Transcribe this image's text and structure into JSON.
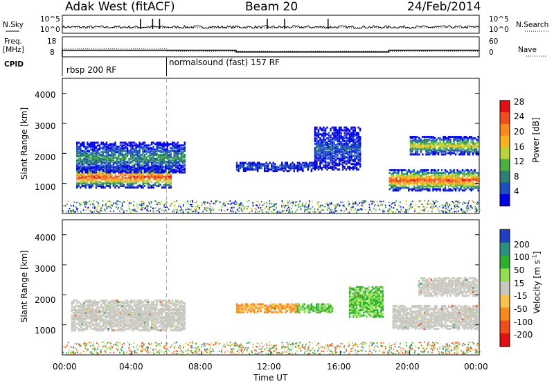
{
  "header": {
    "station": "Adak West (fitACF)",
    "beam": "Beam 20",
    "date": "24/Feb/2014"
  },
  "nsky_panel": {
    "left_label": "N.Sky",
    "right_label": "N.Search",
    "left_ticks": [
      "10^5",
      "10^0"
    ],
    "right_ticks": [
      "10^5",
      "10^0"
    ]
  },
  "freq_panel": {
    "left_label_line1": "Freq.",
    "left_label_line2": "[MHz]",
    "left_ticks": [
      "18",
      "8"
    ],
    "right_label": "Nave",
    "right_ticks": [
      "60",
      "0"
    ]
  },
  "cpid": {
    "label": "CPID",
    "segments": [
      {
        "name": "rbsp 200 RF",
        "start_hour": 0,
        "end_hour": 6
      },
      {
        "name": "normalsound (fast) 157 RF",
        "start_hour": 6,
        "end_hour": 24
      }
    ]
  },
  "x_axis": {
    "label": "Time UT",
    "ticks": [
      "00:00",
      "04:00",
      "08:00",
      "12:00",
      "16:00",
      "20:00",
      "00:00"
    ]
  },
  "power_panel": {
    "ylabel": "Slant Range [km]",
    "yticks": [
      "1000",
      "2000",
      "3000",
      "4000"
    ],
    "colorbar_label": "Power [dB]",
    "colorbar_ticks": [
      "4",
      "8",
      "12",
      "16",
      "20",
      "24",
      "28"
    ],
    "colors": [
      "#0000e6",
      "#1f4fbf",
      "#2e7f6f",
      "#4caf3f",
      "#b8d43a",
      "#f7b21d",
      "#f78a1d",
      "#ef4e1d",
      "#e01010"
    ]
  },
  "velocity_panel": {
    "ylabel": "Slant Range [km]",
    "yticks": [
      "1000",
      "2000",
      "3000",
      "4000"
    ],
    "colorbar_label_main": "Velocity [m s",
    "colorbar_label_sup": "-1",
    "colorbar_label_end": "]",
    "colorbar_ticks": [
      "200",
      "100",
      "50",
      "15",
      "-15",
      "-50",
      "-100",
      "-200"
    ],
    "colors": [
      "#1f3fbf",
      "#2f8f7f",
      "#2faf2f",
      "#8fdf4f",
      "#c8c8c0",
      "#f7c24d",
      "#f78a1d",
      "#ef4e1d",
      "#e01010"
    ]
  },
  "chart_data": {
    "type": "heatmap",
    "x_range_hours": [
      0,
      24
    ],
    "y_range_km": [
      0,
      4500
    ],
    "power_regions": [
      {
        "t0": 0.8,
        "t1": 6.2,
        "r_center": 1250,
        "r_width": 350,
        "peak_db": 28
      },
      {
        "t0": 0.8,
        "t1": 7.0,
        "r_center": 1900,
        "r_width": 500,
        "peak_db": 10
      },
      {
        "t0": 10.0,
        "t1": 14.5,
        "r_center": 1600,
        "r_width": 150,
        "peak_db": 6
      },
      {
        "t0": 14.5,
        "t1": 17.2,
        "r_center": 2200,
        "r_width": 700,
        "peak_db": 6
      },
      {
        "t0": 18.8,
        "t1": 24.0,
        "r_center": 1150,
        "r_width": 350,
        "peak_db": 28
      },
      {
        "t0": 20.0,
        "t1": 24.0,
        "r_center": 2300,
        "r_width": 300,
        "peak_db": 18
      }
    ],
    "velocity_regions": [
      {
        "t0": 0.5,
        "t1": 7.0,
        "r_center": 1350,
        "r_width": 500,
        "velocity": 0
      },
      {
        "t0": 10.0,
        "t1": 13.5,
        "r_center": 1600,
        "r_width": 150,
        "velocity": -50
      },
      {
        "t0": 13.5,
        "t1": 15.5,
        "r_center": 1600,
        "r_width": 150,
        "velocity": 50
      },
      {
        "t0": 16.5,
        "t1": 18.5,
        "r_center": 1800,
        "r_width": 500,
        "velocity": 50
      },
      {
        "t0": 19.0,
        "t1": 24.0,
        "r_center": 1300,
        "r_width": 400,
        "velocity": 0
      },
      {
        "t0": 20.5,
        "t1": 24.0,
        "r_center": 2300,
        "r_width": 300,
        "velocity": 0
      }
    ],
    "freq_mhz_segments": [
      {
        "t0": 0,
        "t1": 10.0,
        "value": 11
      },
      {
        "t0": 10.0,
        "t1": 18.8,
        "value": 10
      },
      {
        "t0": 18.8,
        "t1": 24,
        "value": 11
      }
    ],
    "nsky_spikes_hours": [
      4.5,
      5.2,
      5.6,
      11.8,
      12.8,
      15.3
    ]
  }
}
